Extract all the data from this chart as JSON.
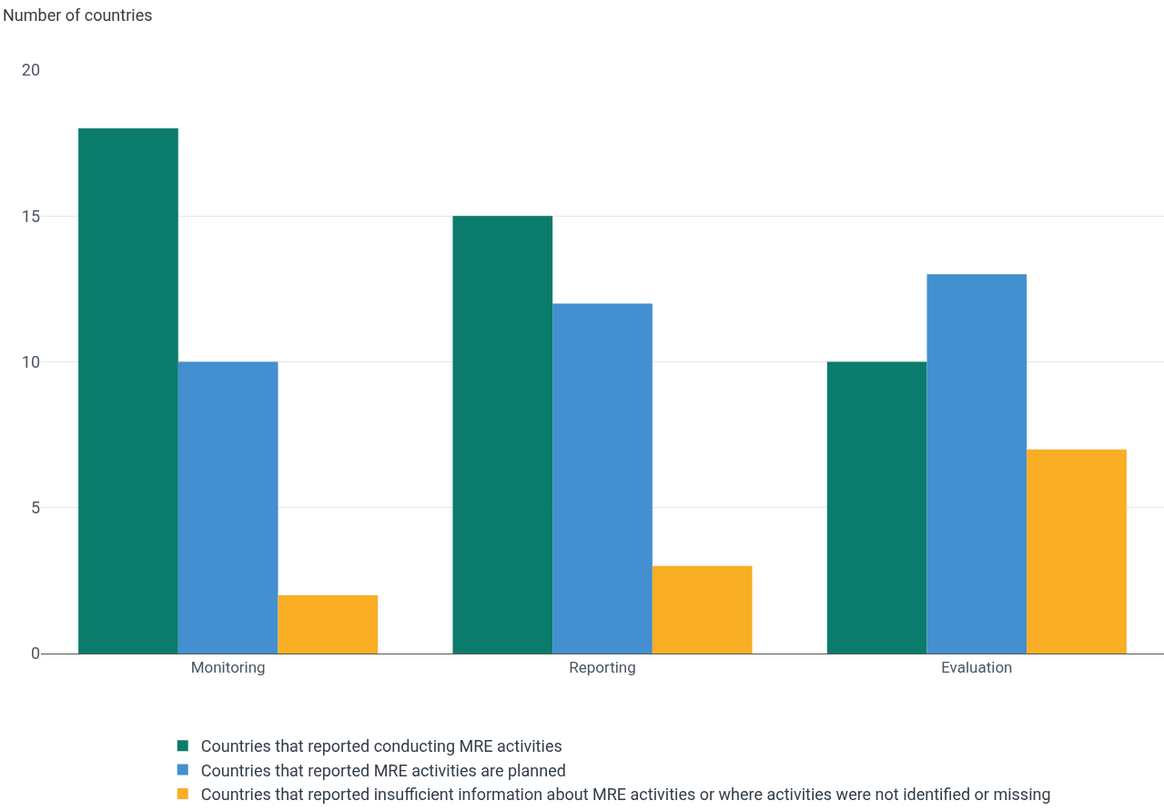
{
  "chart_data": {
    "type": "bar",
    "ylabel": "Number of countries",
    "categories": [
      "Monitoring",
      "Reporting",
      "Evaluation"
    ],
    "series": [
      {
        "name": "Countries that reported conducting MRE activities",
        "color": "#0b7c6b",
        "values": [
          18,
          15,
          10
        ]
      },
      {
        "name": "Countries that reported MRE activities are planned",
        "color": "#438fcf",
        "values": [
          10,
          12,
          13
        ]
      },
      {
        "name": "Countries that reported insufficient information about MRE activities or where activities were not identified or missing",
        "color": "#f9ae24",
        "values": [
          2,
          3,
          7
        ]
      }
    ],
    "ylim": [
      0,
      20
    ],
    "yticks": [
      0,
      5,
      10,
      15,
      20
    ],
    "grid": "y",
    "legend": "bottom"
  }
}
